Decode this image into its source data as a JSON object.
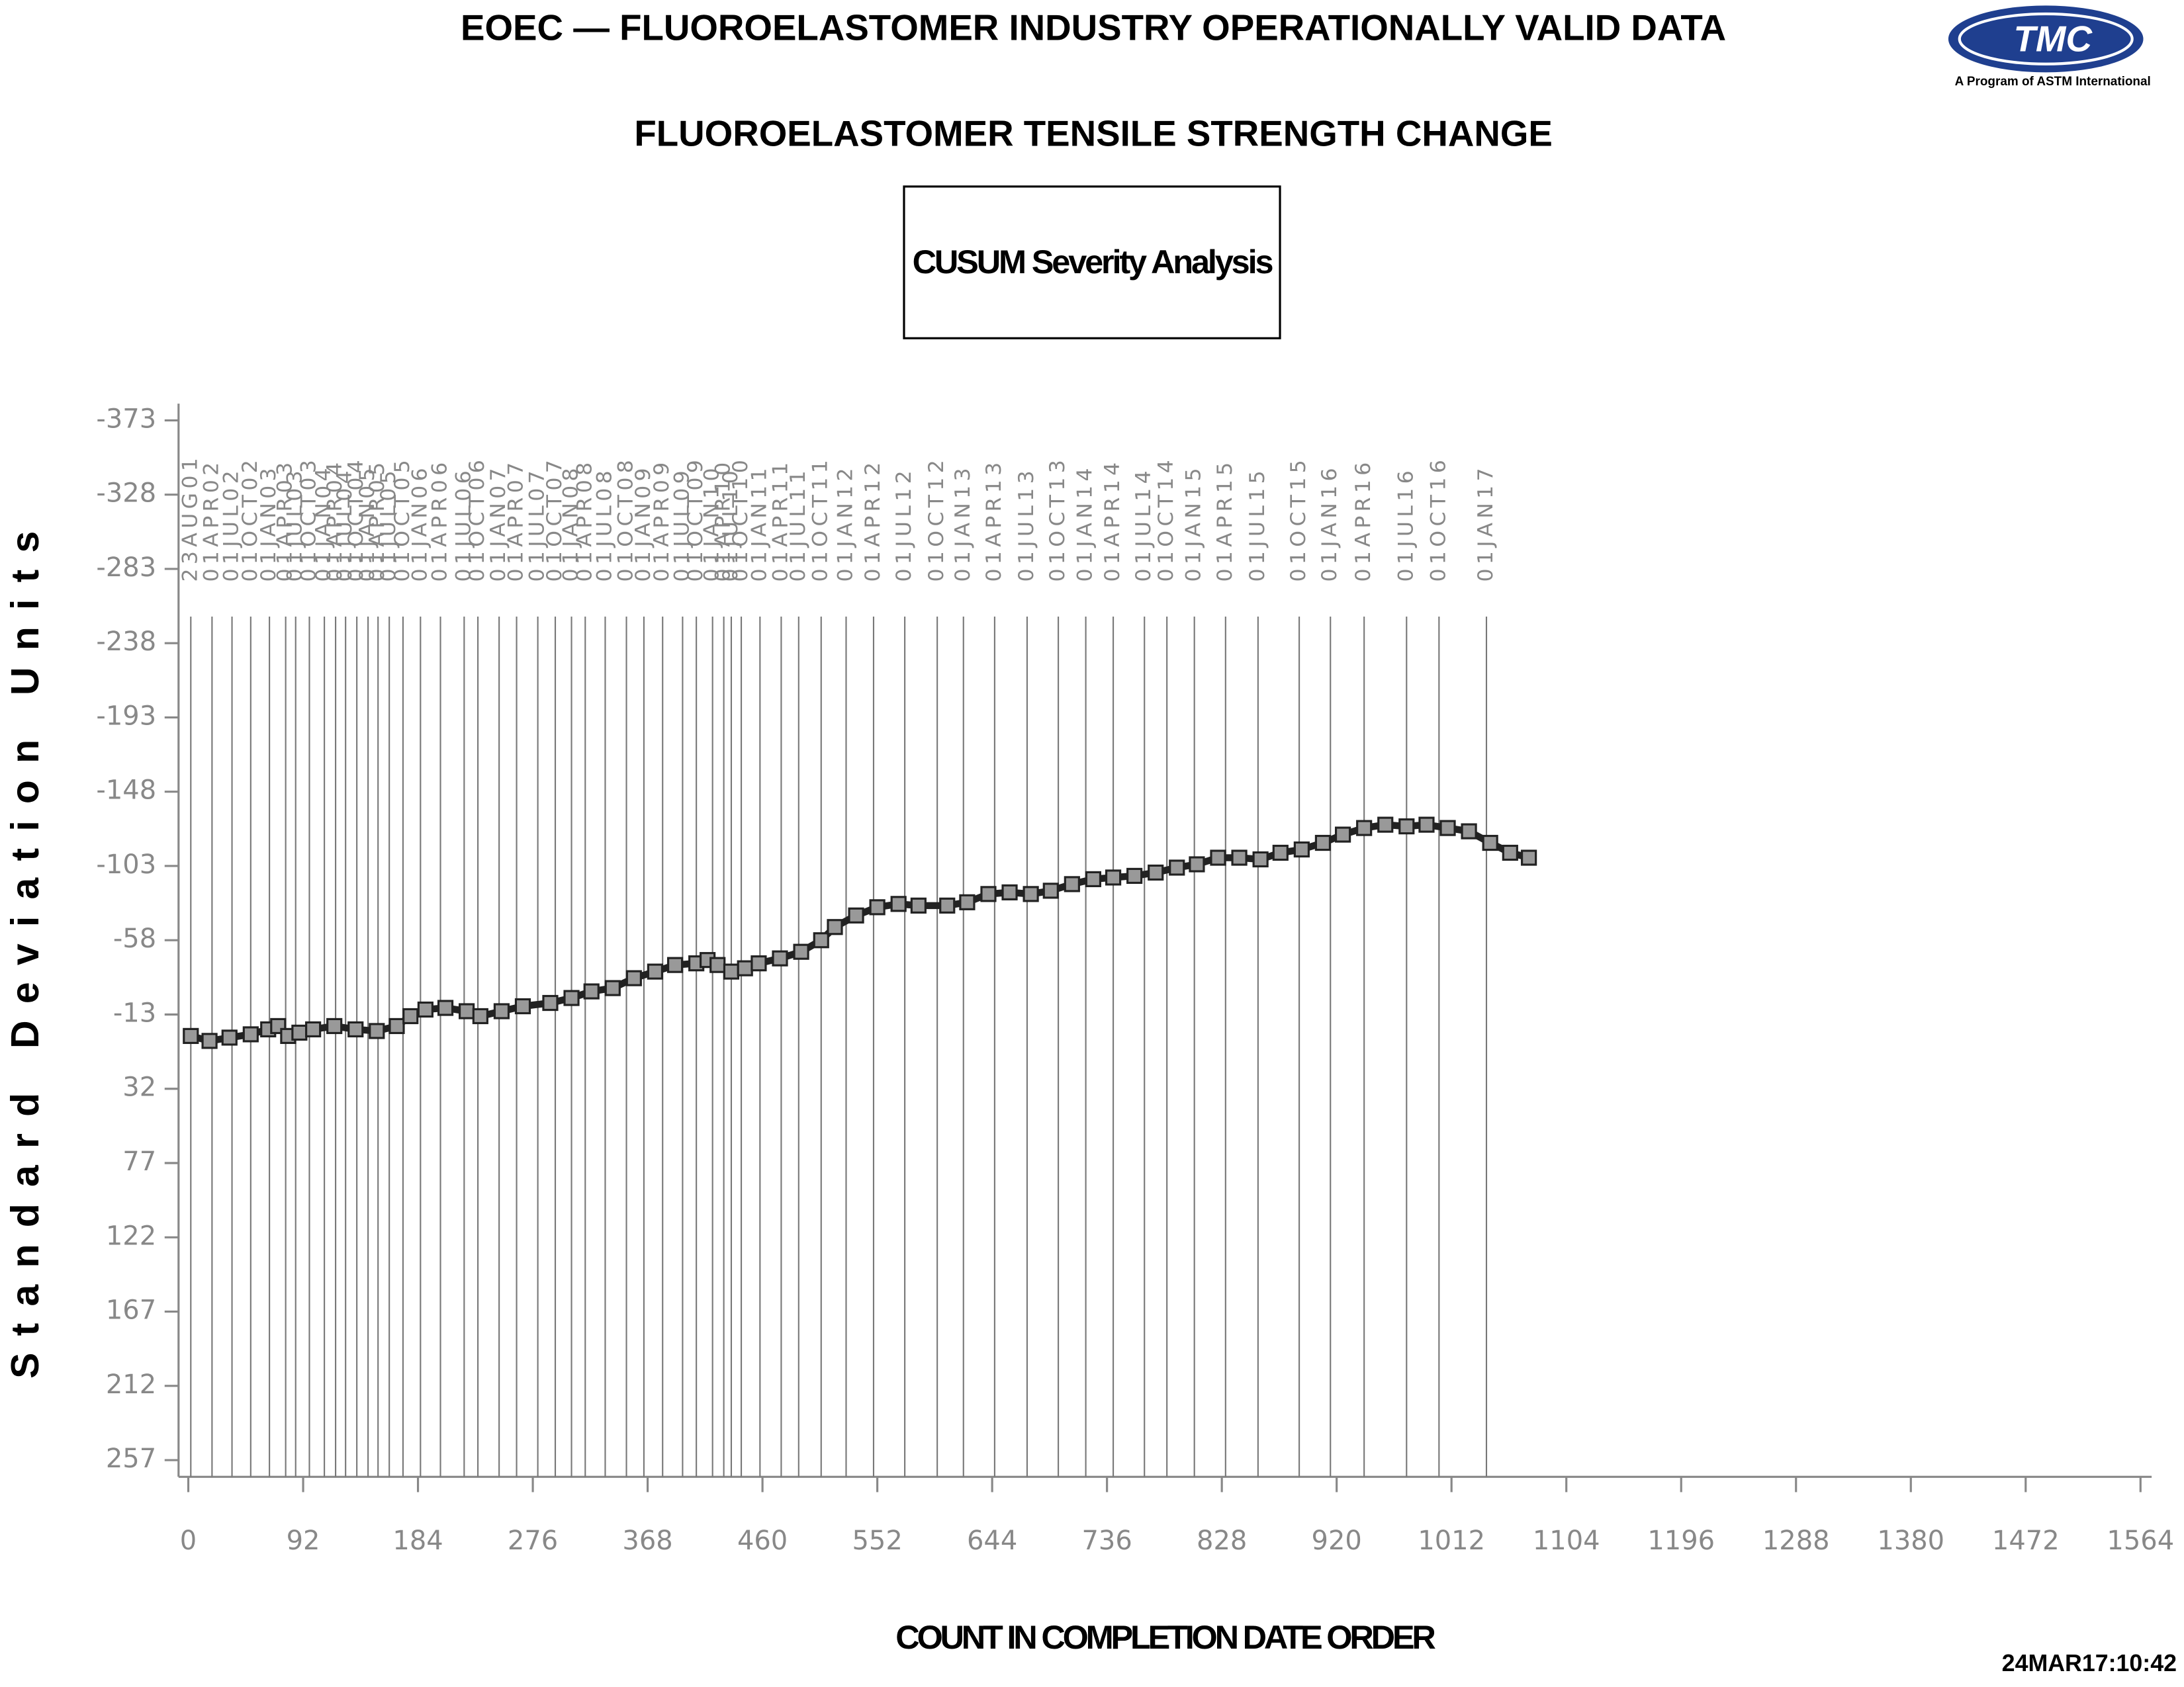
{
  "chart_data": {
    "type": "line",
    "title": "EOEC — FLUOROELASTOMER INDUSTRY OPERATIONALLY VALID DATA",
    "subtitle": "FLUOROELASTOMER TENSILE STRENGTH CHANGE",
    "box_label": "CUSUM Severity Analysis",
    "xlabel": "COUNT IN COMPLETION DATE ORDER",
    "ylabel": "Standard Deviation Units",
    "timestamp": "24MAR17:10:42",
    "logo": {
      "text": "TMC",
      "caption": "A Program of ASTM International"
    },
    "xlim": [
      0,
      1564
    ],
    "xticks": [
      0,
      92,
      184,
      276,
      368,
      460,
      552,
      644,
      736,
      828,
      920,
      1012,
      1104,
      1196,
      1288,
      1380,
      1472,
      1564
    ],
    "ylim": [
      257,
      -373
    ],
    "yticks": [
      -373,
      -328,
      -283,
      -238,
      -193,
      -148,
      -103,
      -58,
      -13,
      32,
      77,
      122,
      167,
      212,
      257
    ],
    "color": "#222222",
    "x": [
      2,
      17,
      33,
      50,
      64,
      72,
      80,
      89,
      100,
      117,
      134,
      151,
      167,
      178,
      190,
      206,
      223,
      234,
      251,
      268,
      290,
      307,
      323,
      340,
      357,
      374,
      390,
      407,
      416,
      424,
      435,
      446,
      457,
      474,
      491,
      507,
      518,
      535,
      552,
      569,
      585,
      608,
      624,
      641,
      658,
      675,
      691,
      708,
      725,
      741,
      758,
      775,
      792,
      808,
      825,
      842,
      859,
      875,
      892,
      909,
      925,
      942,
      959,
      976,
      992,
      1009,
      1026,
      1043,
      1059,
      1074
    ],
    "values": [
      0,
      3,
      1,
      -1,
      -4,
      -6,
      0,
      -2,
      -4,
      -6,
      -4,
      -3,
      -6,
      -12,
      -16,
      -17,
      -15,
      -12,
      -15,
      -18,
      -20,
      -23,
      -27,
      -29,
      -35,
      -39,
      -43,
      -44,
      -46,
      -43,
      -39,
      -41,
      -44,
      -47,
      -51,
      -58,
      -66,
      -73,
      -78,
      -80,
      -79,
      -79,
      -81,
      -86,
      -87,
      -86,
      -88,
      -92,
      -95,
      -96,
      -97,
      -99,
      -102,
      -104,
      -108,
      -108,
      -107,
      -111,
      -113,
      -117,
      -122,
      -126,
      -128,
      -127,
      -128,
      -126,
      -124,
      -117,
      -111,
      -108
    ],
    "reference_lines": {
      "x": [
        2,
        19,
        35,
        50,
        65,
        78,
        86,
        97,
        109,
        118,
        126,
        135,
        144,
        152,
        161,
        172,
        186,
        202,
        221,
        232,
        249,
        263,
        280,
        294,
        307,
        318,
        334,
        351,
        365,
        380,
        396,
        407,
        420,
        429,
        435,
        443,
        458,
        475,
        489,
        507,
        527,
        549,
        574,
        600,
        621,
        646,
        672,
        697,
        719,
        741,
        766,
        784,
        806,
        831,
        857,
        890,
        915,
        942,
        976,
        1002,
        1040
      ],
      "labels": [
        "23AUG01",
        "01APR02",
        "01JUL02",
        "01OCT02",
        "01JAN03",
        "01APR03",
        "01JUL03",
        "01OCT03",
        "01JAN04",
        "01APR04",
        "01JUL04",
        "01OCT04",
        "01JAN05",
        "01APR05",
        "01JUL05",
        "01OCT05",
        "01JAN06",
        "01APR06",
        "01JUL06",
        "01OCT06",
        "01JAN07",
        "01APR07",
        "01JUL07",
        "01OCT07",
        "01JAN08",
        "01APR08",
        "01JUL08",
        "01OCT08",
        "01JAN09",
        "01APR09",
        "01JUL09",
        "01OCT09",
        "01JAN10",
        "01APR10",
        "01JUL10",
        "01OCT10",
        "01JAN11",
        "01APR11",
        "01JUL11",
        "01OCT11",
        "01JAN12",
        "01APR12",
        "01JUL12",
        "01OCT12",
        "01JAN13",
        "01APR13",
        "01JUL13",
        "01OCT13",
        "01JAN14",
        "01APR14",
        "01JUL14",
        "01OCT14",
        "01JAN15",
        "01APR15",
        "01JUL15",
        "01OCT15",
        "01JAN16",
        "01APR16",
        "01JUL16",
        "01OCT16",
        "01JAN17"
      ]
    }
  }
}
